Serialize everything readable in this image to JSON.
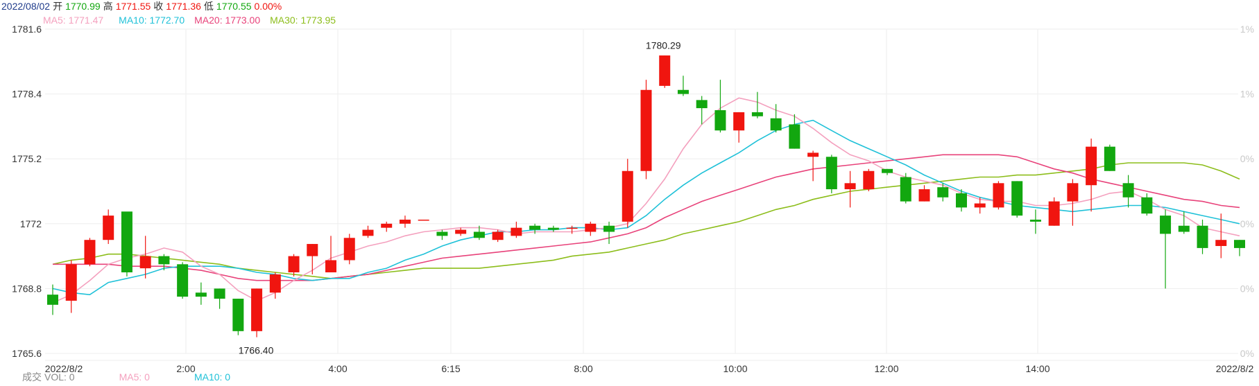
{
  "header": {
    "date": "2022/08/02",
    "open_label": "开",
    "open": "1770.99",
    "high_label": "高",
    "high": "1771.55",
    "close_label": "收",
    "close": "1771.36",
    "low_label": "低",
    "low": "1770.55",
    "change": "0.00%"
  },
  "ma_legend": [
    {
      "label": "MA5: 1771.47",
      "color": "#f4a0be"
    },
    {
      "label": "MA10: 1772.70",
      "color": "#1fc1d8"
    },
    {
      "label": "MA20: 1773.00",
      "color": "#e8427a"
    },
    {
      "label": "MA30: 1773.95",
      "color": "#8cbd1a"
    }
  ],
  "volume_legend": {
    "label": "成交",
    "vol": "VOL: 0",
    "ma5": "MA5: 0",
    "ma10": "MA10: 0"
  },
  "colors": {
    "up": "#f0150f",
    "down": "#12a70f",
    "date_text": "#1e3a8a",
    "ma5": "#f4a0be",
    "ma10": "#1fc1d8",
    "ma20": "#e8427a",
    "ma30": "#8cbd1a"
  },
  "chart_data": {
    "type": "candlestick",
    "ylim": [
      1765.6,
      1781.6
    ],
    "y_ticks": [
      "1781.6",
      "1778.4",
      "1775.2",
      "1772",
      "1768.8",
      "1765.6"
    ],
    "right_ticks": [
      "1%",
      "1%",
      "0%",
      "0%",
      "0%",
      "0%"
    ],
    "x_ticks": [
      "2022/8/2",
      "2:00",
      "4:00",
      "6:15",
      "8:00",
      "10:00",
      "12:00",
      "14:00",
      "2022/8/2"
    ],
    "annotations": [
      {
        "text": "1780.29",
        "value": 1780.29
      },
      {
        "text": "1766.40",
        "value": 1766.4
      }
    ],
    "candles": [
      [
        1768.5,
        1768.0,
        1769.0,
        1767.5
      ],
      [
        1768.2,
        1770.0,
        1770.2,
        1767.6
      ],
      [
        1770.0,
        1771.2,
        1771.3,
        1769.9
      ],
      [
        1771.2,
        1772.4,
        1772.7,
        1771.0
      ],
      [
        1772.6,
        1769.6,
        1769.8,
        1769.4
      ],
      [
        1769.8,
        1770.4,
        1771.4,
        1769.3
      ],
      [
        1770.4,
        1770.0,
        1770.5,
        1769.7
      ],
      [
        1770.0,
        1768.4,
        1770.1,
        1768.3
      ],
      [
        1768.6,
        1768.4,
        1769.1,
        1768.0
      ],
      [
        1768.8,
        1768.3,
        1768.8,
        1767.8
      ],
      [
        1768.3,
        1766.7,
        1768.3,
        1766.5
      ],
      [
        1766.7,
        1768.8,
        1768.8,
        1766.4
      ],
      [
        1768.6,
        1769.5,
        1769.6,
        1768.3
      ],
      [
        1769.6,
        1770.4,
        1770.5,
        1769.4
      ],
      [
        1770.4,
        1771.0,
        1771.0,
        1769.5
      ],
      [
        1769.6,
        1770.2,
        1771.4,
        1769.6
      ],
      [
        1770.2,
        1771.3,
        1771.5,
        1770.0
      ],
      [
        1771.4,
        1771.7,
        1771.9,
        1771.3
      ],
      [
        1771.8,
        1772.0,
        1772.1,
        1771.6
      ],
      [
        1772.0,
        1772.2,
        1772.4,
        1771.8
      ],
      [
        1772.2,
        1772.2,
        1772.2,
        1772.2
      ],
      [
        1771.6,
        1771.4,
        1771.7,
        1771.2
      ],
      [
        1771.5,
        1771.7,
        1771.8,
        1771.4
      ],
      [
        1771.6,
        1771.3,
        1771.9,
        1771.2
      ],
      [
        1771.2,
        1771.6,
        1771.7,
        1771.1
      ],
      [
        1771.4,
        1771.8,
        1772.1,
        1771.3
      ],
      [
        1771.9,
        1771.7,
        1772.0,
        1771.5
      ],
      [
        1771.8,
        1771.7,
        1771.9,
        1771.6
      ],
      [
        1771.8,
        1771.8,
        1771.9,
        1771.5
      ],
      [
        1771.6,
        1772.0,
        1772.1,
        1771.4
      ],
      [
        1771.9,
        1771.6,
        1772.1,
        1771.0
      ],
      [
        1772.1,
        1774.6,
        1775.2,
        1771.8
      ],
      [
        1774.6,
        1778.6,
        1779.1,
        1774.2
      ],
      [
        1778.8,
        1780.3,
        1780.3,
        1778.7
      ],
      [
        1778.6,
        1778.4,
        1779.3,
        1778.3
      ],
      [
        1778.1,
        1777.7,
        1778.3,
        1776.9
      ],
      [
        1777.6,
        1776.6,
        1779.1,
        1776.5
      ],
      [
        1776.6,
        1777.5,
        1777.5,
        1776.0
      ],
      [
        1777.5,
        1777.3,
        1778.5,
        1777.2
      ],
      [
        1777.2,
        1776.6,
        1777.9,
        1776.5
      ],
      [
        1776.9,
        1775.7,
        1777.4,
        1775.7
      ],
      [
        1775.3,
        1775.5,
        1775.6,
        1774.1
      ],
      [
        1775.3,
        1773.7,
        1775.4,
        1773.5
      ],
      [
        1773.7,
        1774.0,
        1774.6,
        1772.8
      ],
      [
        1773.7,
        1774.6,
        1774.7,
        1773.6
      ],
      [
        1774.7,
        1774.5,
        1774.7,
        1774.4
      ],
      [
        1774.3,
        1773.1,
        1774.5,
        1773.0
      ],
      [
        1773.1,
        1773.7,
        1773.9,
        1773.1
      ],
      [
        1773.8,
        1773.3,
        1774.0,
        1773.1
      ],
      [
        1773.5,
        1772.8,
        1773.7,
        1772.6
      ],
      [
        1772.8,
        1773.0,
        1773.3,
        1772.5
      ],
      [
        1772.8,
        1774.0,
        1774.1,
        1772.7
      ],
      [
        1774.1,
        1772.4,
        1774.1,
        1772.3
      ],
      [
        1772.2,
        1772.1,
        1772.7,
        1771.5
      ],
      [
        1771.9,
        1773.1,
        1773.3,
        1771.9
      ],
      [
        1773.1,
        1774.0,
        1774.2,
        1771.9
      ],
      [
        1773.9,
        1775.8,
        1776.2,
        1772.6
      ],
      [
        1775.8,
        1774.6,
        1775.9,
        1774.6
      ],
      [
        1774.0,
        1773.3,
        1774.4,
        1772.8
      ],
      [
        1773.3,
        1772.5,
        1773.5,
        1772.4
      ],
      [
        1772.4,
        1771.5,
        1772.7,
        1768.8
      ],
      [
        1771.9,
        1771.6,
        1772.6,
        1771.5
      ],
      [
        1771.9,
        1770.8,
        1772.2,
        1770.5
      ],
      [
        1770.9,
        1771.2,
        1772.5,
        1770.3
      ],
      [
        1771.2,
        1770.8,
        1771.2,
        1770.4
      ]
    ],
    "ma5": [
      1768.1,
      1768.5,
      1769.2,
      1770.0,
      1770.3,
      1770.5,
      1770.8,
      1770.6,
      1769.9,
      1769.5,
      1768.7,
      1768.2,
      1768.6,
      1769.2,
      1769.7,
      1770.3,
      1770.6,
      1770.9,
      1771.1,
      1771.4,
      1771.6,
      1771.7,
      1771.8,
      1771.8,
      1771.7,
      1771.5,
      1771.6,
      1771.6,
      1771.6,
      1771.7,
      1771.8,
      1772.0,
      1773.0,
      1774.2,
      1775.7,
      1776.9,
      1777.7,
      1778.2,
      1778.0,
      1777.6,
      1777.3,
      1776.7,
      1776.0,
      1775.4,
      1775.1,
      1774.6,
      1774.3,
      1774.1,
      1773.9,
      1773.5,
      1773.2,
      1773.1,
      1773.1,
      1772.9,
      1772.9,
      1773.0,
      1773.2,
      1773.5,
      1773.6,
      1773.2,
      1772.7,
      1772.4,
      1771.8,
      1771.6,
      1771.4
    ],
    "ma10": [
      1768.8,
      1768.6,
      1768.5,
      1769.1,
      1769.3,
      1769.5,
      1769.8,
      1769.9,
      1769.9,
      1769.9,
      1769.8,
      1769.6,
      1769.5,
      1769.3,
      1769.2,
      1769.3,
      1769.3,
      1769.6,
      1769.8,
      1770.2,
      1770.5,
      1770.9,
      1771.2,
      1771.4,
      1771.6,
      1771.6,
      1771.7,
      1771.7,
      1771.8,
      1771.8,
      1771.7,
      1771.8,
      1772.4,
      1773.2,
      1773.9,
      1774.5,
      1775.0,
      1775.5,
      1776.1,
      1776.6,
      1776.9,
      1777.1,
      1776.6,
      1776.1,
      1775.7,
      1775.3,
      1774.9,
      1774.4,
      1774.0,
      1773.6,
      1773.3,
      1773.1,
      1772.9,
      1772.8,
      1772.7,
      1772.6,
      1772.7,
      1772.8,
      1772.9,
      1772.9,
      1772.8,
      1772.6,
      1772.4,
      1772.2,
      1772.0
    ],
    "ma20": [
      1770.0,
      1770.0,
      1770.0,
      1770.0,
      1769.9,
      1769.9,
      1769.9,
      1769.8,
      1769.7,
      1769.5,
      1769.3,
      1769.2,
      1769.2,
      1769.2,
      1769.2,
      1769.3,
      1769.4,
      1769.5,
      1769.7,
      1769.9,
      1770.1,
      1770.3,
      1770.4,
      1770.5,
      1770.6,
      1770.7,
      1770.8,
      1770.9,
      1771.0,
      1771.1,
      1771.3,
      1771.5,
      1771.8,
      1772.3,
      1772.7,
      1773.1,
      1773.4,
      1773.7,
      1774.0,
      1774.3,
      1774.5,
      1774.7,
      1774.8,
      1774.9,
      1775.0,
      1775.1,
      1775.2,
      1775.3,
      1775.4,
      1775.4,
      1775.4,
      1775.4,
      1775.3,
      1775.0,
      1774.7,
      1774.5,
      1774.2,
      1774.0,
      1773.8,
      1773.6,
      1773.4,
      1773.2,
      1773.1,
      1772.9,
      1772.8
    ],
    "ma30": [
      1770.0,
      1770.2,
      1770.3,
      1770.5,
      1770.5,
      1770.4,
      1770.3,
      1770.2,
      1770.1,
      1770.0,
      1769.8,
      1769.7,
      1769.6,
      1769.5,
      1769.4,
      1769.3,
      1769.4,
      1769.5,
      1769.6,
      1769.7,
      1769.8,
      1769.8,
      1769.8,
      1769.8,
      1769.9,
      1770.0,
      1770.1,
      1770.2,
      1770.4,
      1770.5,
      1770.6,
      1770.8,
      1771.0,
      1771.2,
      1771.5,
      1771.7,
      1771.9,
      1772.1,
      1772.4,
      1772.7,
      1772.9,
      1773.2,
      1773.4,
      1773.6,
      1773.7,
      1773.8,
      1773.9,
      1774.0,
      1774.1,
      1774.2,
      1774.3,
      1774.3,
      1774.4,
      1774.4,
      1774.5,
      1774.6,
      1774.7,
      1774.9,
      1775.0,
      1775.0,
      1775.0,
      1775.0,
      1774.9,
      1774.6,
      1774.2
    ]
  }
}
